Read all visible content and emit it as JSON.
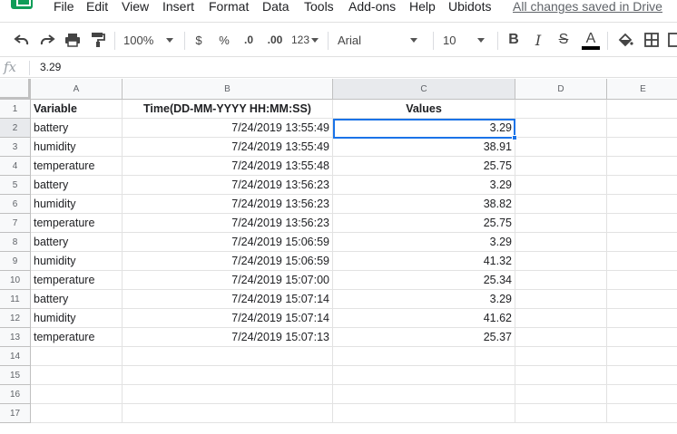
{
  "menubar": {
    "items": [
      "File",
      "Edit",
      "View",
      "Insert",
      "Format",
      "Data",
      "Tools",
      "Add-ons",
      "Help",
      "Ubidots"
    ],
    "save_status": "All changes saved in Drive"
  },
  "toolbar": {
    "zoom": "100%",
    "currency_symbol": "$",
    "percent_symbol": "%",
    "decrease_decimal": ".0",
    "increase_decimal": ".00",
    "more_formats": "123",
    "font": "Arial",
    "font_size": "10",
    "bold": "B",
    "italic": "I",
    "strikethrough": "S",
    "text_color": "A"
  },
  "formula_bar": {
    "fx_label": "fx",
    "value": "3.29"
  },
  "columns": [
    "A",
    "B",
    "C",
    "D",
    "E"
  ],
  "rows": [
    "1",
    "2",
    "3",
    "4",
    "5",
    "6",
    "7",
    "8",
    "9",
    "10",
    "11",
    "12",
    "13",
    "14",
    "15",
    "16",
    "17"
  ],
  "table": {
    "headers": [
      "Variable",
      "Time(DD-MM-YYYY  HH:MM:SS)",
      "Values"
    ],
    "data": [
      [
        "battery",
        "7/24/2019 13:55:49",
        "3.29"
      ],
      [
        "humidity",
        "7/24/2019 13:55:49",
        "38.91"
      ],
      [
        "temperature",
        "7/24/2019 13:55:48",
        "25.75"
      ],
      [
        "battery",
        "7/24/2019 13:56:23",
        "3.29"
      ],
      [
        "humidity",
        "7/24/2019 13:56:23",
        "38.82"
      ],
      [
        "temperature",
        "7/24/2019 13:56:23",
        "25.75"
      ],
      [
        "battery",
        "7/24/2019 15:06:59",
        "3.29"
      ],
      [
        "humidity",
        "7/24/2019 15:06:59",
        "41.32"
      ],
      [
        "temperature",
        "7/24/2019 15:07:00",
        "25.34"
      ],
      [
        "battery",
        "7/24/2019 15:07:14",
        "3.29"
      ],
      [
        "humidity",
        "7/24/2019 15:07:14",
        "41.62"
      ],
      [
        "temperature",
        "7/24/2019 15:07:13",
        "25.37"
      ]
    ]
  },
  "selected_cell": "C2",
  "colors": {
    "selection": "#1a73e8",
    "sheets_green": "#0f9d58"
  }
}
